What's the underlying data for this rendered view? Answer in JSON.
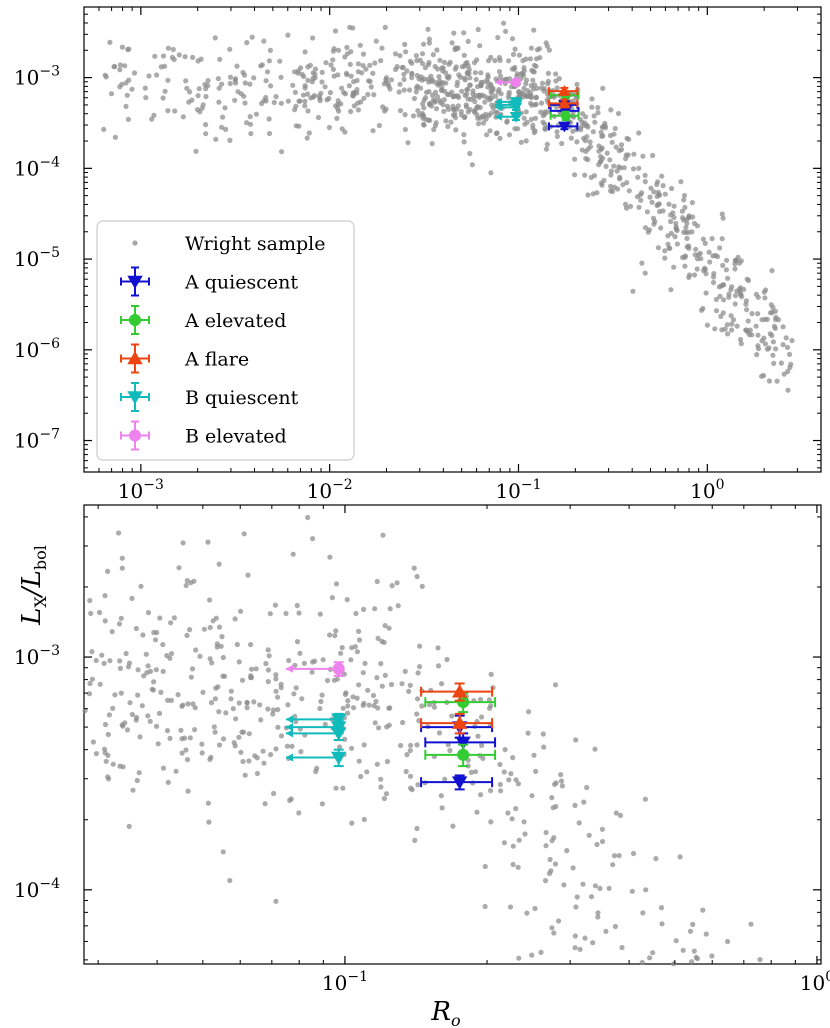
{
  "chart_data": [
    {
      "type": "scatter",
      "panel": "top",
      "xscale": "log",
      "yscale": "log",
      "xlim": [
        0.0005,
        4.0
      ],
      "ylim": [
        4.5e-08,
        0.006
      ],
      "xticks": [
        {
          "label_base": "10",
          "label_exp": "−3",
          "value": 0.001
        },
        {
          "label_base": "10",
          "label_exp": "−2",
          "value": 0.01
        },
        {
          "label_base": "10",
          "label_exp": "−1",
          "value": 0.1
        },
        {
          "label_base": "10",
          "label_exp": "0",
          "value": 1.0
        }
      ],
      "yticks": [
        {
          "label_base": "10",
          "label_exp": "−3",
          "value": 0.001
        },
        {
          "label_base": "10",
          "label_exp": "−4",
          "value": 0.0001
        },
        {
          "label_base": "10",
          "label_exp": "−5",
          "value": 1e-05
        },
        {
          "label_base": "10",
          "label_exp": "−6",
          "value": 1e-06
        },
        {
          "label_base": "10",
          "label_exp": "−7",
          "value": 1e-07
        }
      ],
      "legend": {
        "location": "lower-left",
        "entries": [
          {
            "label": "Wright sample",
            "color": "#8a8a8a",
            "marker": "dot"
          },
          {
            "label": "A quiescent",
            "color": "#1010d0",
            "marker": "triangle-down"
          },
          {
            "label": "A elevated",
            "color": "#33cc33",
            "marker": "circle"
          },
          {
            "label": "A flare",
            "color": "#ee4411",
            "marker": "triangle-up"
          },
          {
            "label": "B quiescent",
            "color": "#11bbbb",
            "marker": "triangle-down"
          },
          {
            "label": "B elevated",
            "color": "#ee82ee",
            "marker": "circle"
          }
        ]
      }
    },
    {
      "type": "scatter",
      "panel": "bottom",
      "xscale": "log",
      "yscale": "log",
      "xlim": [
        0.028,
        1.02
      ],
      "ylim": [
        4.8e-05,
        0.0045
      ],
      "xticks": [
        {
          "label_base": "10",
          "label_exp": "−1",
          "value": 0.1
        },
        {
          "label_base": "10",
          "label_exp": "0",
          "value": 1.0
        }
      ],
      "yticks": [
        {
          "label_base": "10",
          "label_exp": "−3",
          "value": 0.001
        },
        {
          "label_base": "10",
          "label_exp": "−4",
          "value": 0.0001
        }
      ]
    }
  ],
  "shared": {
    "ylabel_main": "L",
    "ylabel_sub1": "X",
    "ylabel_mid": "/L",
    "ylabel_sub2": "bol",
    "xlabel_main": "R",
    "xlabel_sub": "o",
    "series": [
      {
        "name": "A quiescent",
        "color": "#1010d0",
        "marker": "triangle-down",
        "points": [
          {
            "x": 0.175,
            "y": 0.0005,
            "xerr": [
              0.03,
              0.03
            ],
            "yerr": [
              5e-05,
              6e-05
            ]
          },
          {
            "x": 0.178,
            "y": 0.00043,
            "xerr": [
              0.03,
              0.03
            ],
            "yerr": [
              4e-05,
              4e-05
            ]
          },
          {
            "x": 0.175,
            "y": 0.00029,
            "xerr": [
              0.03,
              0.03
            ],
            "yerr": [
              2e-05,
              2e-05
            ]
          }
        ]
      },
      {
        "name": "A elevated",
        "color": "#33cc33",
        "marker": "circle",
        "points": [
          {
            "x": 0.178,
            "y": 0.00064,
            "xerr": [
              0.03,
              0.03
            ],
            "yerr": [
              6e-05,
              6e-05
            ]
          },
          {
            "x": 0.178,
            "y": 0.00038,
            "xerr": [
              0.03,
              0.03
            ],
            "yerr": [
              4e-05,
              4e-05
            ]
          }
        ]
      },
      {
        "name": "A flare",
        "color": "#ee4411",
        "marker": "triangle-up",
        "points": [
          {
            "x": 0.175,
            "y": 0.00071,
            "xerr": [
              0.03,
              0.03
            ],
            "yerr": [
              6e-05,
              6e-05
            ]
          },
          {
            "x": 0.175,
            "y": 0.00052,
            "xerr": [
              0.03,
              0.03
            ],
            "yerr": [
              5e-05,
              5e-05
            ]
          }
        ]
      },
      {
        "name": "B quiescent",
        "color": "#11bbbb",
        "marker": "triangle-down",
        "upper_limit_x": true,
        "points": [
          {
            "x": 0.097,
            "y": 0.00054,
            "xend": 0.075,
            "yerr": [
              3e-05,
              3e-05
            ]
          },
          {
            "x": 0.097,
            "y": 0.0005,
            "xend": 0.075,
            "yerr": [
              3e-05,
              3e-05
            ]
          },
          {
            "x": 0.097,
            "y": 0.00047,
            "xend": 0.075,
            "yerr": [
              3e-05,
              3e-05
            ]
          },
          {
            "x": 0.097,
            "y": 0.00037,
            "xend": 0.075,
            "yerr": [
              3e-05,
              3e-05
            ]
          }
        ]
      },
      {
        "name": "B elevated",
        "color": "#ee82ee",
        "marker": "circle",
        "upper_limit_x": true,
        "points": [
          {
            "x": 0.097,
            "y": 0.00089,
            "xend": 0.075,
            "yerr": [
              6e-05,
              6e-05
            ]
          }
        ]
      }
    ]
  }
}
